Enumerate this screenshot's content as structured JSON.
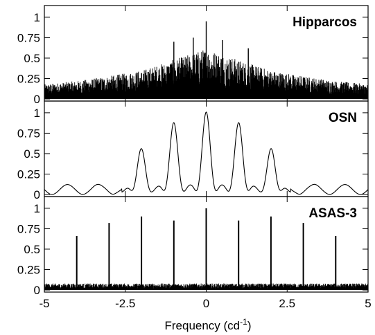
{
  "chart_data": [
    {
      "type": "line",
      "panel_label": "Hipparcos",
      "x_range": [
        -5,
        5
      ],
      "ylim": [
        0,
        1.1
      ],
      "yticks": [
        "0",
        "0.25",
        "0.5",
        "0.75",
        "1"
      ],
      "xticks": [
        "-5",
        "-2.5",
        "0",
        "2.5",
        "5"
      ],
      "envelope": {
        "x": [
          -5,
          -4,
          -3,
          -2,
          -1,
          -0.5,
          0,
          0.5,
          1,
          2,
          3,
          4,
          5
        ],
        "y": [
          0.18,
          0.22,
          0.28,
          0.35,
          0.48,
          0.55,
          0.62,
          0.55,
          0.48,
          0.35,
          0.28,
          0.22,
          0.18
        ]
      },
      "peaks": [
        {
          "x": 0,
          "y": 0.95
        },
        {
          "x": -0.4,
          "y": 0.75
        },
        {
          "x": 0.5,
          "y": 0.72
        },
        {
          "x": -1.0,
          "y": 0.7
        },
        {
          "x": 1.3,
          "y": 0.62
        }
      ]
    },
    {
      "type": "line",
      "panel_label": "OSN",
      "x_range": [
        -5,
        5
      ],
      "ylim": [
        0,
        1.1
      ],
      "yticks": [
        "0",
        "0.25",
        "0.5",
        "0.75",
        "1"
      ],
      "xticks": [
        "-5",
        "-2.5",
        "0",
        "2.5",
        "5"
      ],
      "main_peaks": [
        {
          "x": -2,
          "y": 0.55
        },
        {
          "x": -1,
          "y": 0.87
        },
        {
          "x": 0,
          "y": 1.0
        },
        {
          "x": 1,
          "y": 0.87
        },
        {
          "x": 2,
          "y": 0.55
        }
      ],
      "sidelobe_level": 0.2
    },
    {
      "type": "line",
      "panel_label": "ASAS-3",
      "x_range": [
        -5,
        5
      ],
      "ylim": [
        0,
        1.1
      ],
      "yticks": [
        "0",
        "0.25",
        "0.5",
        "0.75",
        "1"
      ],
      "xticks": [
        "-5",
        "-2.5",
        "0",
        "2.5",
        "5"
      ],
      "xlabel_main": "Frequency (cd",
      "xlabel_sup": "-1",
      "xlabel_end": ")",
      "peaks": [
        {
          "x": -4,
          "y": 0.66
        },
        {
          "x": -3,
          "y": 0.82
        },
        {
          "x": -2,
          "y": 0.9
        },
        {
          "x": -1,
          "y": 0.85
        },
        {
          "x": 0,
          "y": 1.0
        },
        {
          "x": 1,
          "y": 0.85
        },
        {
          "x": 2,
          "y": 0.9
        },
        {
          "x": 3,
          "y": 0.82
        },
        {
          "x": 4,
          "y": 0.66
        }
      ],
      "noise_level": 0.08
    }
  ]
}
